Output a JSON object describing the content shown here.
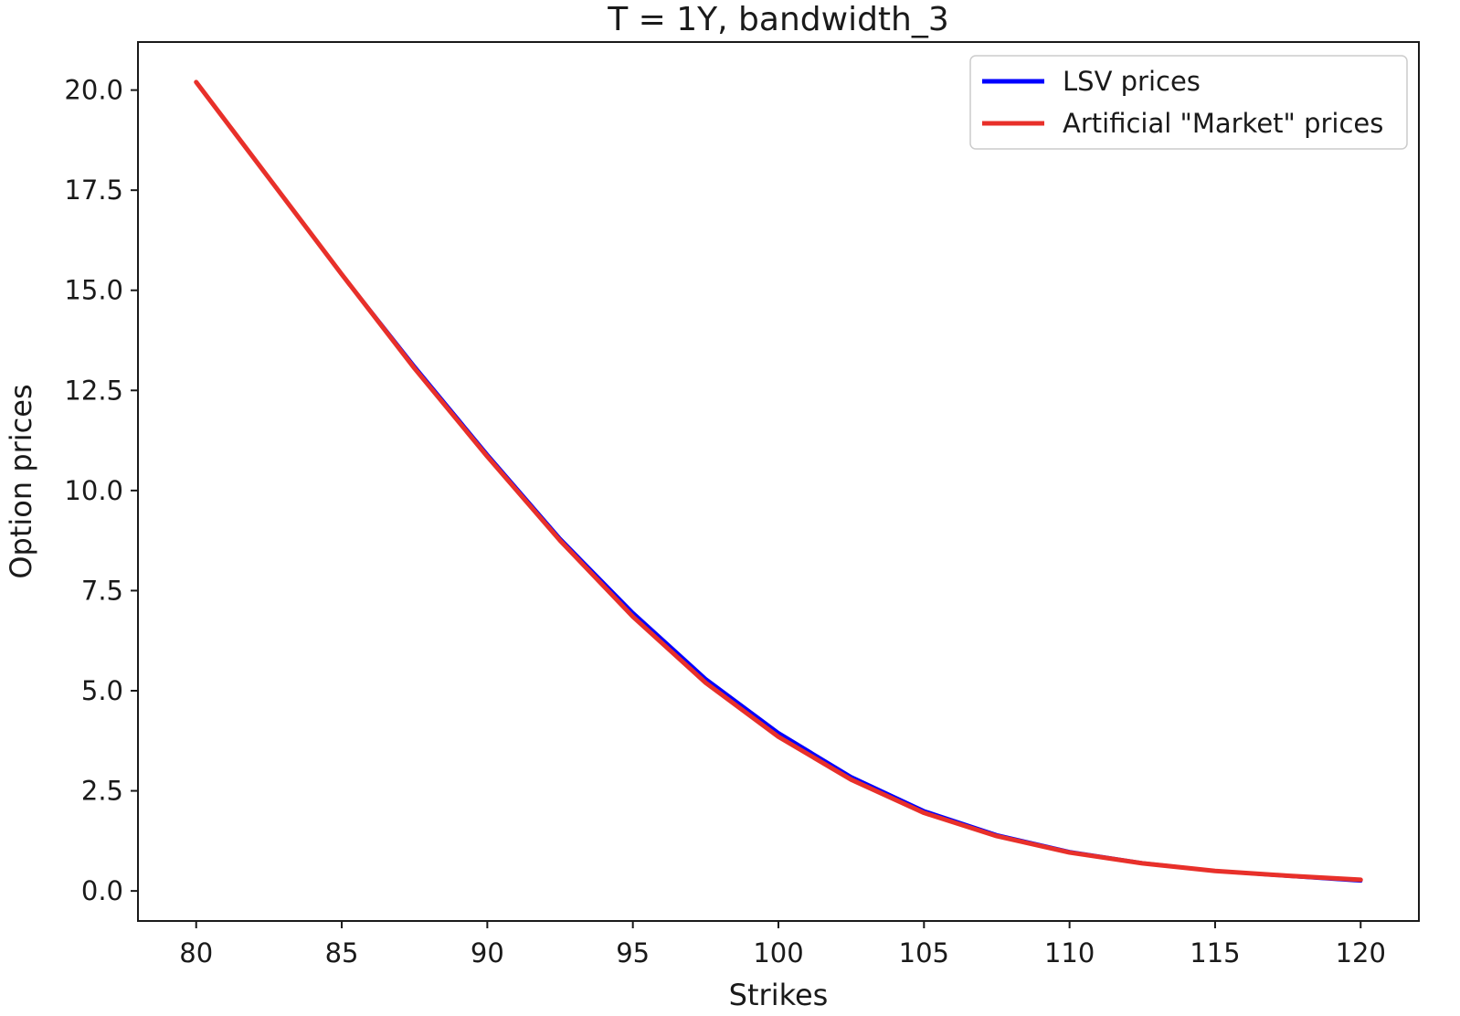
{
  "chart_data": {
    "type": "line",
    "title": "T = 1Y, bandwidth_3",
    "xlabel": "Strikes",
    "ylabel": "Option prices",
    "xlim": [
      78,
      122
    ],
    "ylim": [
      -0.75,
      21.2
    ],
    "xticks": [
      80,
      85,
      90,
      95,
      100,
      105,
      110,
      115,
      120
    ],
    "xtick_labels": [
      "80",
      "85",
      "90",
      "95",
      "100",
      "105",
      "110",
      "115",
      "120"
    ],
    "yticks": [
      0,
      2.5,
      5,
      7.5,
      10,
      12.5,
      15,
      17.5,
      20
    ],
    "ytick_labels": [
      "0.0",
      "2.5",
      "5.0",
      "7.5",
      "10.0",
      "12.5",
      "15.0",
      "17.5",
      "20.0"
    ],
    "grid": false,
    "legend_position": "top-right",
    "x": [
      80,
      82.5,
      85,
      87.5,
      90,
      92.5,
      95,
      97.5,
      100,
      102.5,
      105,
      107.5,
      110,
      112.5,
      115,
      117.5,
      120
    ],
    "series": [
      {
        "name": "LSV prices",
        "color": "#0000ff",
        "values": [
          20.2,
          17.8,
          15.4,
          13.1,
          10.9,
          8.8,
          6.95,
          5.3,
          3.95,
          2.85,
          2.0,
          1.4,
          0.98,
          0.7,
          0.5,
          0.37,
          0.25
        ]
      },
      {
        "name": "Artificial \"Market\" prices",
        "color": "#e8302a",
        "values": [
          20.2,
          17.8,
          15.4,
          13.05,
          10.85,
          8.75,
          6.85,
          5.2,
          3.85,
          2.78,
          1.95,
          1.37,
          0.96,
          0.69,
          0.5,
          0.38,
          0.28
        ]
      }
    ]
  }
}
